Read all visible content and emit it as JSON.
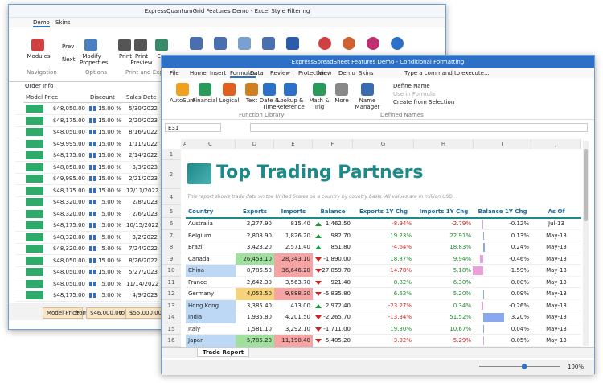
{
  "back": {
    "title": "ExpressQuantumGrid Features Demo - Excel Style Filtering",
    "tabs": [
      "Demo",
      "Skins"
    ],
    "buttons": [
      "Modules",
      "Prev",
      "Next",
      "Modify Properties",
      "Print",
      "Print Preview",
      "Exp"
    ],
    "groups": [
      "Navigation",
      "Options",
      "Print and Export"
    ],
    "band": "Order Info",
    "columns": [
      "Model Price",
      "Discount",
      "Sales Date"
    ],
    "rows": [
      [
        "$48,050.00",
        "15.00 %",
        "5/30/2022"
      ],
      [
        "$48,175.00",
        "15.00 %",
        "2/20/2023"
      ],
      [
        "$48,050.00",
        "15.00 %",
        "8/16/2022"
      ],
      [
        "$49,995.00",
        "15.00 %",
        "1/11/2022"
      ],
      [
        "$48,175.00",
        "15.00 %",
        "2/14/2022"
      ],
      [
        "$48,050.00",
        "15.00 %",
        "3/3/2023"
      ],
      [
        "$49,995.00",
        "15.00 %",
        "2/21/2023"
      ],
      [
        "$48,175.00",
        "15.00 %",
        "12/11/2022"
      ],
      [
        "$48,320.00",
        "5.00 %",
        "2/8/2023"
      ],
      [
        "$48,320.00",
        "5.00 %",
        "2/6/2023"
      ],
      [
        "$48,175.00",
        "5.00 %",
        "10/15/2022"
      ],
      [
        "$48,320.00",
        "5.00 %",
        "3/2/2022"
      ],
      [
        "$48,320.00",
        "5.00 %",
        "7/24/2022"
      ],
      [
        "$48,050.00",
        "15.00 %",
        "8/26/2022"
      ],
      [
        "$48,050.00",
        "15.00 %",
        "5/27/2023"
      ],
      [
        "$48,050.00",
        "5.00 %",
        "11/14/2022"
      ],
      [
        "$48,175.00",
        "5.00 %",
        "4/9/2023"
      ]
    ],
    "filter": {
      "field": "Model Price",
      "from": "from",
      "min": "$46,000.00",
      "to": "to",
      "max": "$55,000.00"
    }
  },
  "front": {
    "title": "ExpressSpreadSheet Features Demo - Conditional Formatting",
    "tabs": [
      "File",
      "Home",
      "Insert",
      "Formulas",
      "Data",
      "Review",
      "Protection",
      "View",
      "Demo",
      "Skins"
    ],
    "search": "Type a command to execute...",
    "buttons": [
      "AutoSum",
      "Financial",
      "Logical",
      "Text",
      "Date & Time",
      "Lookup & Reference",
      "Math & Trig",
      "More",
      "Name Manager"
    ],
    "name_items": [
      "Define Name",
      "Use in Formula",
      "Create from Selection"
    ],
    "groups": [
      "Function Library",
      "Defined Names"
    ],
    "cell": "E31",
    "col_heads": [
      "A",
      "C",
      "D",
      "E",
      "F",
      "G",
      "H",
      "I",
      "J"
    ],
    "row_heads": [
      "1",
      "2",
      "4",
      "5",
      "6",
      "7",
      "8",
      "9",
      "10",
      "11",
      "12",
      "13",
      "14",
      "15",
      "16"
    ],
    "sheet_title": "Top Trading Partners",
    "note": "This report shows trade data on the United States on a country by country basis. All values are in million USD.",
    "headers": [
      "Country",
      "Exports",
      "Imports",
      "Balance",
      "Exports 1Y Chg",
      "Imports 1Y Chg",
      "Balance 1Y Chg",
      "As Of"
    ],
    "rows": [
      [
        "Australia",
        "2,277.90",
        "815.40",
        "1,462.50",
        "-8.94%",
        "-2.79%",
        "-0.12%",
        "Jul-13"
      ],
      [
        "Belgium",
        "2,808.90",
        "1,826.20",
        "982.70",
        "19.23%",
        "22.91%",
        "0.13%",
        "May-13"
      ],
      [
        "Brazil",
        "3,423.20",
        "2,571.40",
        "851.80",
        "-4.64%",
        "18.83%",
        "0.24%",
        "May-13"
      ],
      [
        "Canada",
        "26,453.10",
        "28,343.10",
        "-1,890.00",
        "18.87%",
        "9.94%",
        "-0.46%",
        "May-13"
      ],
      [
        "China",
        "8,786.50",
        "36,646.20",
        "-27,859.70",
        "-14.78%",
        "5.18%",
        "-1.59%",
        "May-13"
      ],
      [
        "France",
        "2,642.30",
        "3,563.70",
        "-921.40",
        "8.82%",
        "6.30%",
        "0.00%",
        "May-13"
      ],
      [
        "Germany",
        "4,052.50",
        "9,888.30",
        "-5,835.80",
        "6.62%",
        "5.20%",
        "0.09%",
        "May-13"
      ],
      [
        "Hong Kong",
        "3,385.40",
        "413.00",
        "2,972.40",
        "-23.27%",
        "0.34%",
        "-0.26%",
        "May-13"
      ],
      [
        "India",
        "1,935.80",
        "4,201.50",
        "-2,265.70",
        "-13.34%",
        "51.52%",
        "3.20%",
        "May-13"
      ],
      [
        "Italy",
        "1,581.10",
        "3,292.10",
        "-1,711.00",
        "19.30%",
        "10.67%",
        "0.04%",
        "May-13"
      ],
      [
        "Japan",
        "5,785.20",
        "11,190.40",
        "-5,405.20",
        "-3.92%",
        "-5.29%",
        "-0.05%",
        "May-13"
      ]
    ],
    "sheet_tab": "Trade Report",
    "zoom": "100%"
  }
}
